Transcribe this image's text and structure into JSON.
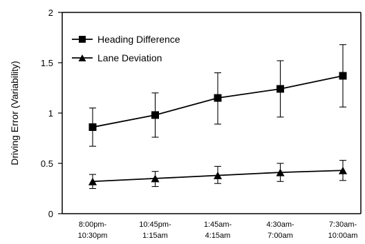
{
  "chart_data": {
    "type": "line",
    "title": "",
    "xlabel": "",
    "ylabel": "Driving Error (Variability)",
    "ylim": [
      0,
      2
    ],
    "yticks": [
      0,
      0.5,
      1,
      1.5,
      2
    ],
    "ytick_labels": [
      "0",
      "0.5",
      "1",
      "1.5",
      "2"
    ],
    "grid": false,
    "legend": {
      "position": "top-left"
    },
    "categories": [
      [
        "8:00pm-",
        "10:30pm"
      ],
      [
        "10:45pm-",
        "1:15am"
      ],
      [
        "1:45am-",
        "4:15am"
      ],
      [
        "4:30am-",
        "7:00am"
      ],
      [
        "7:30am-",
        "10:00am"
      ]
    ],
    "series": [
      {
        "name": "Heading Difference",
        "marker": "square",
        "color": "#000000",
        "values": [
          0.86,
          0.98,
          1.15,
          1.24,
          1.37
        ],
        "error_low": [
          0.67,
          0.76,
          0.89,
          0.96,
          1.06
        ],
        "error_high": [
          1.05,
          1.2,
          1.4,
          1.52,
          1.68
        ]
      },
      {
        "name": "Lane Deviation",
        "marker": "triangle",
        "color": "#000000",
        "values": [
          0.32,
          0.35,
          0.38,
          0.41,
          0.43
        ],
        "error_low": [
          0.25,
          0.27,
          0.3,
          0.32,
          0.33
        ],
        "error_high": [
          0.39,
          0.42,
          0.47,
          0.5,
          0.53
        ]
      }
    ]
  }
}
